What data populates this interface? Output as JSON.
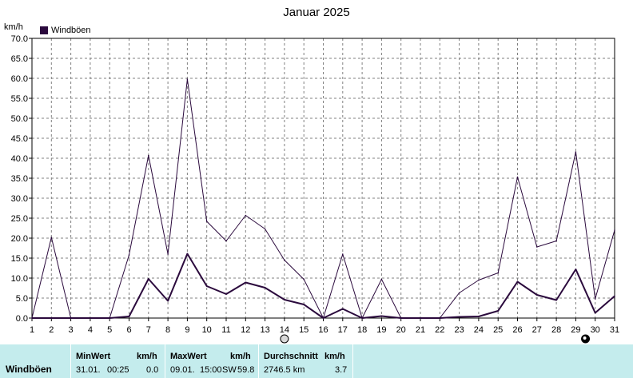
{
  "title": "Januar 2025",
  "unit": "km/h",
  "legend_label": "Windböen",
  "colors": {
    "series": "#2b0a3d",
    "grid": "#808080",
    "stats_bg": "#c4eced"
  },
  "icons": {
    "day14": "full-moon-icon",
    "day30": "new-moon-icon"
  },
  "chart_data": {
    "type": "line",
    "title": "Januar 2025",
    "ylabel": "km/h",
    "xlabel": "",
    "ylim": [
      0,
      70
    ],
    "grid": true,
    "legend": "top-left",
    "x": [
      1,
      2,
      3,
      4,
      5,
      6,
      7,
      8,
      9,
      10,
      11,
      12,
      13,
      14,
      15,
      16,
      17,
      18,
      19,
      20,
      21,
      22,
      23,
      24,
      25,
      26,
      27,
      28,
      29,
      30,
      31
    ],
    "yticks": [
      "0.0",
      "5.0",
      "10.0",
      "15.0",
      "20.0",
      "25.0",
      "30.0",
      "35.0",
      "40.0",
      "45.0",
      "50.0",
      "55.0",
      "60.0",
      "65.0",
      "70.0"
    ],
    "series": [
      {
        "name": "Windböen",
        "role": "max",
        "values": [
          0,
          20.2,
          0,
          0,
          0,
          15.8,
          40.7,
          16,
          59.8,
          24.2,
          19.3,
          25.7,
          22.3,
          14.5,
          9.7,
          0,
          16,
          0,
          9.7,
          0,
          0,
          0,
          6.3,
          9.5,
          11.3,
          35.3,
          17.8,
          19.3,
          41.6,
          4.8,
          22
        ]
      },
      {
        "name": "Windböen",
        "role": "average",
        "values": [
          0,
          0,
          0,
          0,
          0,
          0.4,
          9.8,
          4.3,
          16.1,
          8,
          6,
          8.9,
          7.6,
          4.6,
          3.4,
          0,
          2.3,
          0,
          0.5,
          0,
          0,
          0,
          0.3,
          0.4,
          1.8,
          9.1,
          5.8,
          4.5,
          12.2,
          1.3,
          5.5
        ]
      }
    ]
  },
  "stats": {
    "row_label": "Windböen",
    "min": {
      "header": "MinWert",
      "unit": "km/h",
      "date": "31.01.",
      "time": "00:25",
      "value": "0.0"
    },
    "max": {
      "header": "MaxWert",
      "unit": "km/h",
      "date": "09.01.",
      "time": "15:00",
      "dir": "SW",
      "value": "59.8"
    },
    "avg": {
      "header": "Durchschnitt",
      "unit": "km/h",
      "distance": "2746.5 km",
      "value": "3.7"
    }
  }
}
